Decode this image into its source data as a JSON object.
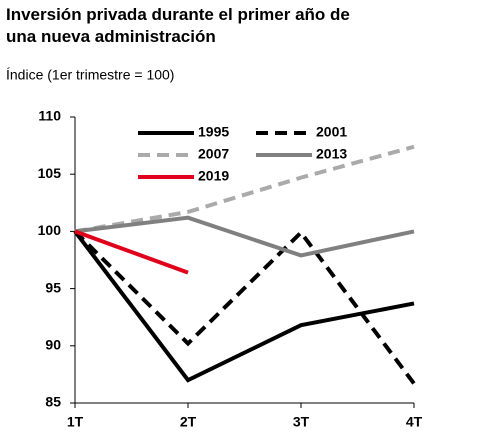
{
  "chart_data": {
    "type": "line",
    "title": "Inversión privada durante el primer año de una nueva administración",
    "subtitle": "Índice (1er trimestre = 100)",
    "categories": [
      "1T",
      "2T",
      "3T",
      "4T"
    ],
    "series": [
      {
        "name": "1995",
        "color": "#000000",
        "style": "solid",
        "values": [
          100,
          87.0,
          91.8,
          93.7
        ]
      },
      {
        "name": "2001",
        "color": "#000000",
        "style": "dashed",
        "values": [
          100,
          90.2,
          99.9,
          86.7
        ]
      },
      {
        "name": "2007",
        "color": "#aaaaaa",
        "style": "dashed",
        "values": [
          100,
          101.7,
          104.7,
          107.4
        ]
      },
      {
        "name": "2013",
        "color": "#808080",
        "style": "solid",
        "values": [
          100,
          101.2,
          97.9,
          100.0
        ]
      },
      {
        "name": "2019",
        "color": "#e0001b",
        "style": "solid",
        "values": [
          100,
          96.4,
          null,
          null
        ]
      }
    ],
    "ylim": [
      85,
      110
    ],
    "yticks": [
      85,
      90,
      95,
      100,
      105,
      110
    ],
    "grid": false,
    "legend": "top"
  }
}
